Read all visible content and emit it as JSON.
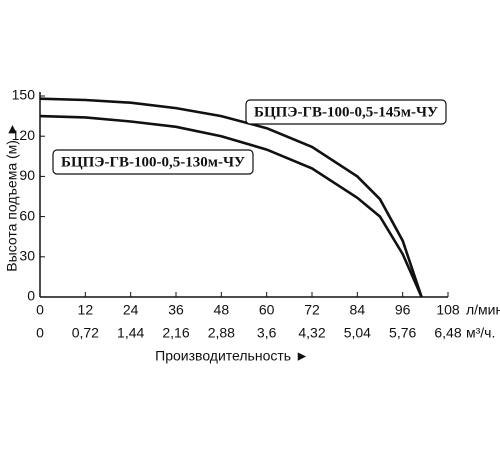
{
  "chart_data": {
    "type": "line",
    "y_label": "Высота подъема (м) ►",
    "x_label": "Производительность ►",
    "x_unit": "л/мин.",
    "x2_unit": "м³/ч.",
    "x": [
      0,
      12,
      24,
      36,
      48,
      60,
      72,
      84,
      90,
      96,
      101
    ],
    "series": [
      {
        "name": "БЦПЭ-ГВ-100-0,5-145м-ЧУ",
        "color": "#111111",
        "values": [
          148,
          147,
          145,
          141,
          135,
          126,
          112,
          90,
          73,
          42,
          0
        ]
      },
      {
        "name": "БЦПЭ-ГВ-100-0,5-130м-ЧУ",
        "color": "#111111",
        "values": [
          135,
          134,
          131,
          127,
          120,
          110,
          96,
          74,
          60,
          32,
          0
        ]
      }
    ],
    "xlim": [
      0,
      108
    ],
    "xticks": [
      0,
      12,
      24,
      36,
      48,
      60,
      72,
      84,
      96,
      108
    ],
    "x2lim": [
      0,
      6.48
    ],
    "x2ticks": [
      0,
      {
        "value": 0.72,
        "label": "0,72"
      },
      {
        "value": 1.44,
        "label": "1,44"
      },
      {
        "value": 2.16,
        "label": "2,16"
      },
      {
        "value": 2.88,
        "label": "2,88"
      },
      {
        "value": 3.6,
        "label": "3,6"
      },
      {
        "value": 4.32,
        "label": "4,32"
      },
      {
        "value": 5.04,
        "label": "5,04"
      },
      {
        "value": 5.76,
        "label": "5,76"
      },
      {
        "value": 6.48,
        "label": "6,48"
      }
    ],
    "ylim": [
      0,
      150
    ],
    "yticks": [
      0,
      30,
      60,
      90,
      120,
      150
    ],
    "grid": false
  }
}
